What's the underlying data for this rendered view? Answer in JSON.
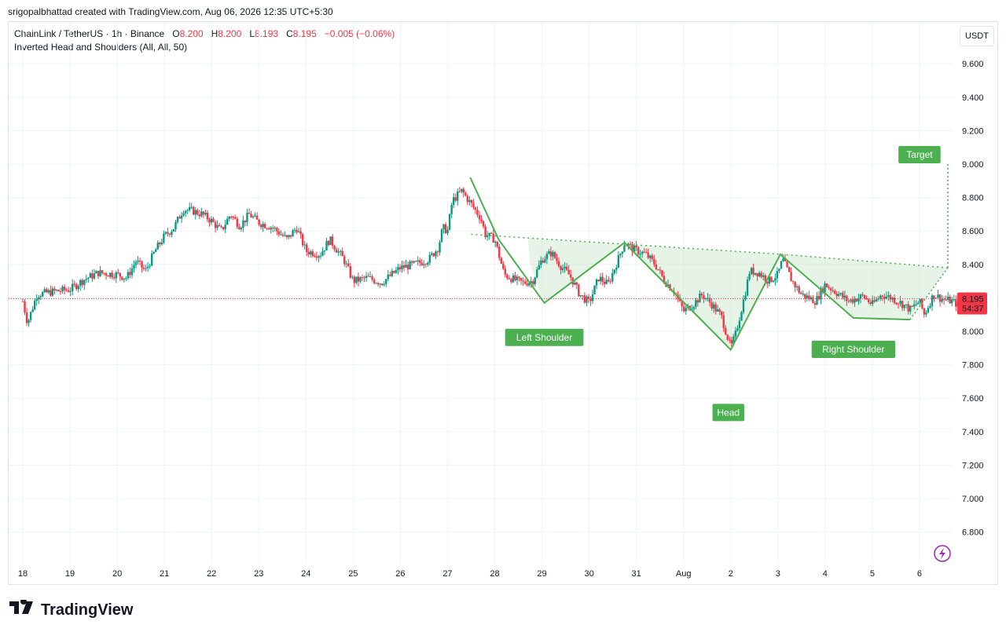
{
  "header": {
    "attribution": "srigopalbhattad created with TradingView.com, Aug 06, 2026 12:35 UTC+5:30"
  },
  "legend": {
    "symbol": "ChainLink / TetherUS · 1h · Binance",
    "o_label": "O",
    "o_value": "8.200",
    "h_label": "H",
    "h_value": "8.200",
    "l_label": "L",
    "l_value": "8.193",
    "c_label": "C",
    "c_value": "8.195",
    "change": "−0.005 (−0.06%)",
    "indicator": "Inverted Head and Shoulders (All, All, 50)"
  },
  "currency": "USDT",
  "price_tag": {
    "price": "8.195",
    "countdown": "54:37"
  },
  "footer": {
    "brand": "TradingView"
  },
  "colors": {
    "up": "#089981",
    "down": "#f23645",
    "pattern": "#4caf50",
    "pattern_fill": "#c8e6c9"
  },
  "chart_data": {
    "type": "candlestick",
    "title": "ChainLink / TetherUS · 1h · Binance",
    "ylim": [
      6.7,
      9.75
    ],
    "y_ticks": [
      "9.600",
      "9.400",
      "9.200",
      "9.000",
      "8.800",
      "8.600",
      "8.400",
      "8.200",
      "8.000",
      "7.800",
      "7.600",
      "7.400",
      "7.200",
      "7.000",
      "6.800"
    ],
    "x_ticks": [
      "18",
      "19",
      "20",
      "21",
      "22",
      "23",
      "24",
      "25",
      "26",
      "27",
      "28",
      "29",
      "30",
      "31",
      "Aug",
      "2",
      "3",
      "4",
      "5",
      "6"
    ],
    "last_price": 8.195,
    "price_path": [
      [
        0,
        8.18
      ],
      [
        0.1,
        8.05
      ],
      [
        0.3,
        8.22
      ],
      [
        0.7,
        8.24
      ],
      [
        1.0,
        8.25
      ],
      [
        1.3,
        8.31
      ],
      [
        1.6,
        8.35
      ],
      [
        2.0,
        8.34
      ],
      [
        2.2,
        8.32
      ],
      [
        2.4,
        8.42
      ],
      [
        2.6,
        8.36
      ],
      [
        2.8,
        8.48
      ],
      [
        3.0,
        8.57
      ],
      [
        3.2,
        8.62
      ],
      [
        3.4,
        8.73
      ],
      [
        3.6,
        8.72
      ],
      [
        3.8,
        8.7
      ],
      [
        4.0,
        8.66
      ],
      [
        4.2,
        8.6
      ],
      [
        4.4,
        8.7
      ],
      [
        4.6,
        8.63
      ],
      [
        4.8,
        8.7
      ],
      [
        5.0,
        8.65
      ],
      [
        5.3,
        8.62
      ],
      [
        5.6,
        8.55
      ],
      [
        5.8,
        8.62
      ],
      [
        6.0,
        8.48
      ],
      [
        6.3,
        8.46
      ],
      [
        6.5,
        8.55
      ],
      [
        6.8,
        8.43
      ],
      [
        7.0,
        8.3
      ],
      [
        7.3,
        8.32
      ],
      [
        7.6,
        8.29
      ],
      [
        8.0,
        8.38
      ],
      [
        8.3,
        8.4
      ],
      [
        8.6,
        8.43
      ],
      [
        8.8,
        8.5
      ],
      [
        8.9,
        8.62
      ],
      [
        9.0,
        8.6
      ],
      [
        9.1,
        8.78
      ],
      [
        9.3,
        8.84
      ],
      [
        9.5,
        8.76
      ],
      [
        9.7,
        8.68
      ],
      [
        9.8,
        8.58
      ],
      [
        10.0,
        8.55
      ],
      [
        10.2,
        8.34
      ],
      [
        10.4,
        8.31
      ],
      [
        10.6,
        8.29
      ],
      [
        10.8,
        8.3
      ],
      [
        11.0,
        8.43
      ],
      [
        11.2,
        8.47
      ],
      [
        11.4,
        8.39
      ],
      [
        11.6,
        8.33
      ],
      [
        11.8,
        8.22
      ],
      [
        12.0,
        8.17
      ],
      [
        12.2,
        8.32
      ],
      [
        12.4,
        8.28
      ],
      [
        12.6,
        8.42
      ],
      [
        12.75,
        8.53
      ],
      [
        12.95,
        8.49
      ],
      [
        13.2,
        8.46
      ],
      [
        13.4,
        8.4
      ],
      [
        13.6,
        8.3
      ],
      [
        13.8,
        8.24
      ],
      [
        14.0,
        8.12
      ],
      [
        14.2,
        8.16
      ],
      [
        14.4,
        8.22
      ],
      [
        14.6,
        8.16
      ],
      [
        14.8,
        8.09
      ],
      [
        15.0,
        7.9
      ],
      [
        15.1,
        7.98
      ],
      [
        15.2,
        8.1
      ],
      [
        15.3,
        8.22
      ],
      [
        15.4,
        8.36
      ],
      [
        15.6,
        8.35
      ],
      [
        15.8,
        8.3
      ],
      [
        16.0,
        8.34
      ],
      [
        16.1,
        8.43
      ],
      [
        16.3,
        8.3
      ],
      [
        16.5,
        8.22
      ],
      [
        16.8,
        8.18
      ],
      [
        17.0,
        8.28
      ],
      [
        17.2,
        8.24
      ],
      [
        17.5,
        8.18
      ],
      [
        17.8,
        8.21
      ],
      [
        18.0,
        8.16
      ],
      [
        18.2,
        8.22
      ],
      [
        18.4,
        8.2
      ],
      [
        18.6,
        8.17
      ],
      [
        18.8,
        8.13
      ],
      [
        19.0,
        8.18
      ],
      [
        19.1,
        8.1
      ],
      [
        19.3,
        8.22
      ],
      [
        19.5,
        8.19
      ],
      [
        19.7,
        8.18
      ],
      [
        19.85,
        8.15
      ],
      [
        20.0,
        8.2
      ],
      [
        20.15,
        8.21
      ]
    ],
    "pattern": {
      "name": "Inverted Head and Shoulders",
      "zigzag": [
        [
          9.48,
          8.92
        ],
        [
          10.08,
          8.55
        ],
        [
          11.05,
          8.17
        ],
        [
          12.75,
          8.53
        ],
        [
          15.0,
          7.89
        ],
        [
          16.05,
          8.46
        ],
        [
          17.6,
          8.08
        ],
        [
          18.8,
          8.07
        ]
      ],
      "neckline": [
        [
          9.5,
          8.58
        ],
        [
          12.8,
          8.52
        ],
        [
          16.1,
          8.46
        ],
        [
          19.6,
          8.38
        ]
      ],
      "target_price": 9.0,
      "labels": [
        {
          "text": "Left Shoulder",
          "x": 11.05,
          "y": 8.17
        },
        {
          "text": "Head",
          "x": 15.0,
          "y": 7.89
        },
        {
          "text": "Right Shoulder",
          "x": 17.6,
          "y": 8.08
        },
        {
          "text": "Target",
          "x": 19.3,
          "y": 9.0
        }
      ]
    }
  }
}
